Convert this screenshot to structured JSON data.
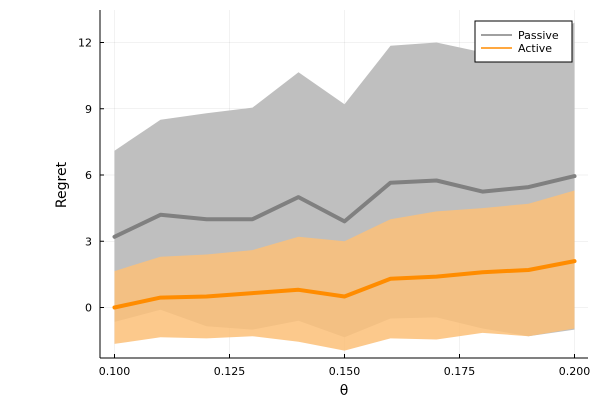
{
  "chart_data": {
    "type": "line",
    "xlabel": "θ",
    "ylabel": "Regret",
    "xlim": [
      0.1,
      0.2
    ],
    "ylim": [
      -2.3,
      13.4
    ],
    "xticks": [
      0.1,
      0.125,
      0.15,
      0.175,
      0.2
    ],
    "xtick_labels": [
      "0.100",
      "0.125",
      "0.150",
      "0.175",
      "0.200"
    ],
    "yticks": [
      0,
      3,
      6,
      9,
      12
    ],
    "ytick_labels": [
      "0",
      "3",
      "6",
      "9",
      "12"
    ],
    "grid": true,
    "legend_position": "top-right",
    "x": [
      0.1,
      0.11,
      0.12,
      0.13,
      0.14,
      0.15,
      0.16,
      0.17,
      0.18,
      0.19,
      0.2
    ],
    "series": [
      {
        "name": "Passive",
        "color": "#808080",
        "band_color": "#bfbfbf",
        "values": [
          3.2,
          4.2,
          4.0,
          4.0,
          5.0,
          3.9,
          5.65,
          5.75,
          5.25,
          5.45,
          5.95
        ],
        "upper": [
          7.1,
          8.5,
          8.8,
          9.05,
          10.65,
          9.2,
          11.85,
          12.0,
          11.55,
          11.7,
          12.9
        ],
        "lower": [
          -0.65,
          -0.1,
          -0.85,
          -1.0,
          -0.6,
          -1.35,
          -0.5,
          -0.45,
          -0.95,
          -1.3,
          -1.0
        ]
      },
      {
        "name": "Active",
        "color": "#ff8c00",
        "band_color": "#fcc078",
        "values": [
          0.0,
          0.45,
          0.5,
          0.65,
          0.8,
          0.5,
          1.3,
          1.4,
          1.6,
          1.7,
          2.1
        ],
        "upper": [
          1.65,
          2.3,
          2.4,
          2.6,
          3.2,
          3.0,
          4.0,
          4.35,
          4.5,
          4.7,
          5.3
        ],
        "lower": [
          -1.65,
          -1.35,
          -1.4,
          -1.3,
          -1.55,
          -1.95,
          -1.4,
          -1.45,
          -1.15,
          -1.3,
          -0.95
        ]
      }
    ]
  }
}
